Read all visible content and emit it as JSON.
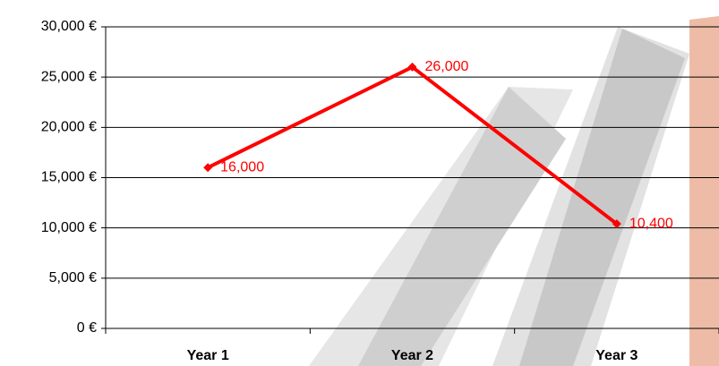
{
  "chart_data": {
    "type": "line",
    "categories": [
      "Year 1",
      "Year 2",
      "Year 3"
    ],
    "series": [
      {
        "color": "#ff0000",
        "values": [
          16000,
          26000,
          10400
        ],
        "value_labels": [
          "16,000",
          "26,000",
          "10,400"
        ]
      }
    ],
    "ylim": [
      0,
      30000
    ],
    "yticks": [
      {
        "value": 0,
        "label": "0 €"
      },
      {
        "value": 5000,
        "label": "5,000 €"
      },
      {
        "value": 10000,
        "label": "10,000 €"
      },
      {
        "value": 15000,
        "label": "15,000 €"
      },
      {
        "value": 20000,
        "label": "20,000 €"
      },
      {
        "value": 25000,
        "label": "25,000 €"
      },
      {
        "value": 30000,
        "label": "30,000 €"
      }
    ],
    "grid": true
  }
}
